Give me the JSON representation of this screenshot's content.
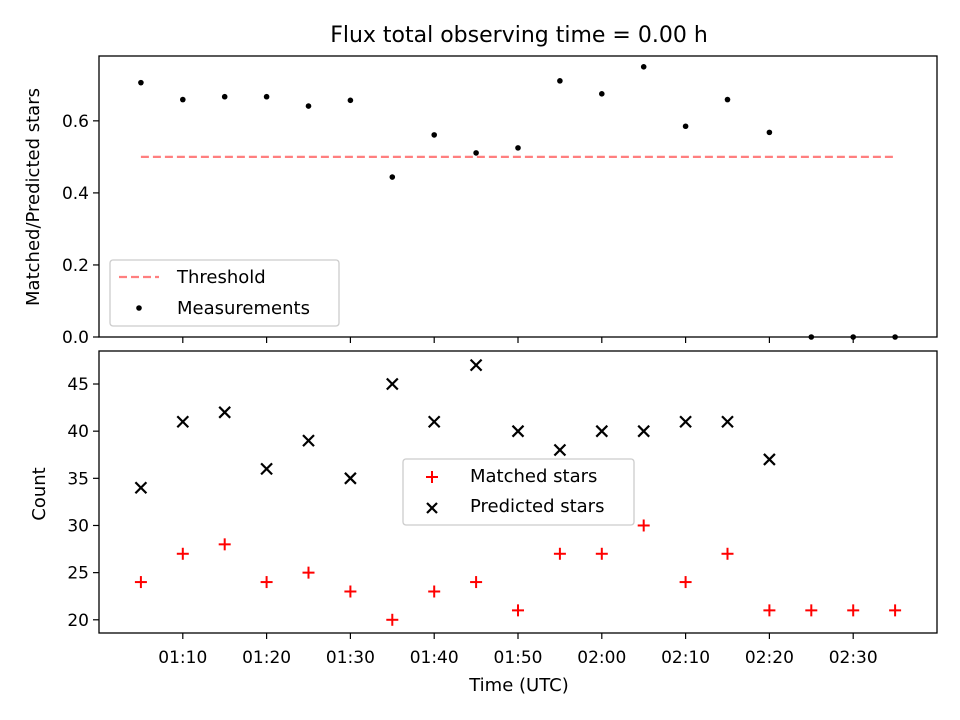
{
  "chart_data": [
    {
      "type": "scatter",
      "title": "Flux total observing time = 0.00 h",
      "xlabel": "",
      "ylabel": "Matched/Predicted stars",
      "ylim": [
        0,
        0.78
      ],
      "yticks": [
        0.0,
        0.2,
        0.4,
        0.6
      ],
      "ytick_labels": [
        "0.0",
        "0.2",
        "0.4",
        "0.6"
      ],
      "legend_placement": "lower-left",
      "threshold": {
        "name": "Threshold",
        "value": 0.5,
        "x_start": "01:05",
        "x_end": "02:35",
        "color": "#ff7f7f"
      },
      "series": [
        {
          "name": "Measurements",
          "color": "#000000",
          "x": [
            "01:05",
            "01:10",
            "01:15",
            "01:20",
            "01:25",
            "01:30",
            "01:35",
            "01:40",
            "01:45",
            "01:50",
            "01:55",
            "02:00",
            "02:05",
            "02:10",
            "02:15",
            "02:20",
            "02:25",
            "02:30",
            "02:35"
          ],
          "y": [
            0.706,
            0.659,
            0.667,
            0.667,
            0.641,
            0.657,
            0.444,
            0.561,
            0.511,
            0.525,
            0.711,
            0.675,
            0.75,
            0.585,
            0.659,
            0.568,
            0.0,
            0.0,
            0.0
          ]
        }
      ]
    },
    {
      "type": "scatter",
      "title": "",
      "xlabel": "Time (UTC)",
      "ylabel": "Count",
      "ylim": [
        18.6,
        48.5
      ],
      "yticks": [
        20,
        25,
        30,
        35,
        40,
        45
      ],
      "ytick_labels": [
        "20",
        "25",
        "30",
        "35",
        "40",
        "45"
      ],
      "xlim": [
        "01:00",
        "02:40"
      ],
      "xticks": [
        "01:10",
        "01:20",
        "01:30",
        "01:40",
        "01:50",
        "02:00",
        "02:10",
        "02:20",
        "02:30"
      ],
      "xtick_labels": [
        "01:10",
        "01:20",
        "01:30",
        "01:40",
        "01:50",
        "02:00",
        "02:10",
        "02:20",
        "02:30"
      ],
      "legend_placement": "center",
      "series": [
        {
          "name": "Matched stars",
          "marker": "plus",
          "color": "#ff0000",
          "x": [
            "01:05",
            "01:10",
            "01:15",
            "01:20",
            "01:25",
            "01:30",
            "01:35",
            "01:40",
            "01:45",
            "01:50",
            "01:55",
            "02:00",
            "02:05",
            "02:10",
            "02:15",
            "02:20",
            "02:25",
            "02:30",
            "02:35"
          ],
          "y": [
            24,
            27,
            28,
            24,
            25,
            23,
            20,
            23,
            24,
            21,
            27,
            27,
            30,
            24,
            27,
            21,
            21,
            21,
            21
          ]
        },
        {
          "name": "Predicted stars",
          "marker": "x",
          "color": "#000000",
          "x": [
            "01:05",
            "01:10",
            "01:15",
            "01:20",
            "01:25",
            "01:30",
            "01:35",
            "01:40",
            "01:45",
            "01:50",
            "01:55",
            "02:00",
            "02:05",
            "02:10",
            "02:15",
            "02:20"
          ],
          "y": [
            34,
            41,
            42,
            36,
            39,
            35,
            45,
            41,
            47,
            40,
            38,
            40,
            40,
            41,
            41,
            37
          ]
        }
      ]
    }
  ]
}
